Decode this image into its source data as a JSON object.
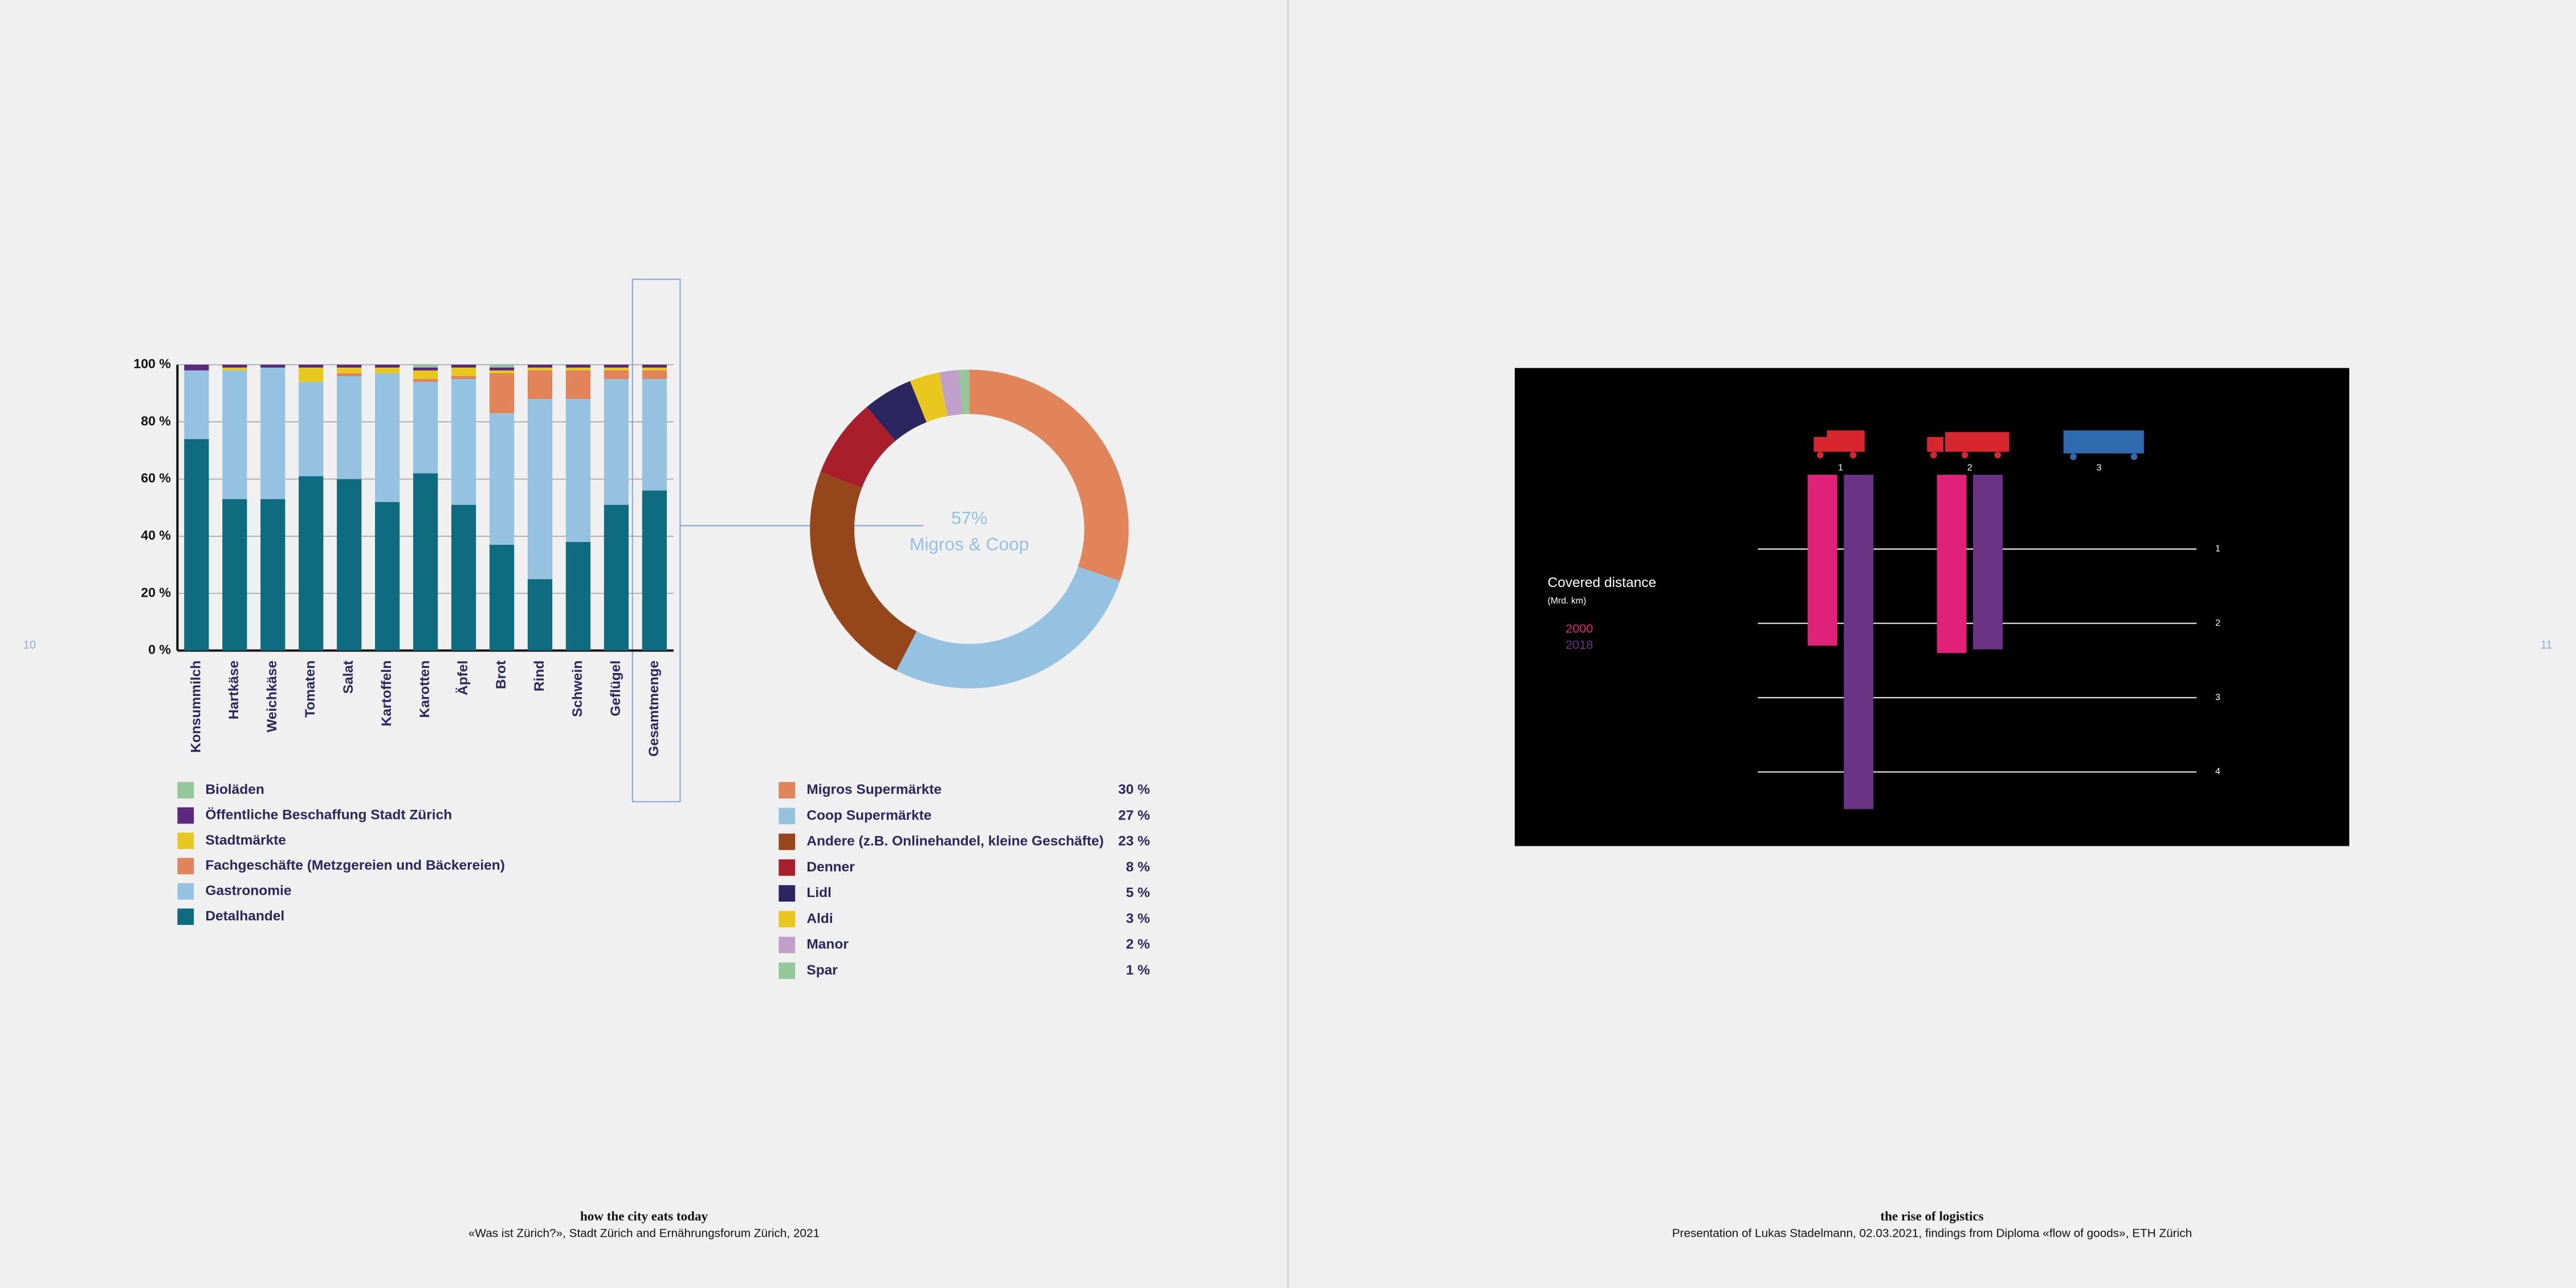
{
  "pages": [
    {
      "number": "10",
      "caption_title": "how the city eats today",
      "caption_source": "«Was ist Zürich?», Stadt Zürich and Ernährungsforum Zürich, 2021"
    },
    {
      "number": "11",
      "caption_title": "the rise of logistics",
      "caption_source": "Presentation of Lukas Stadelmann, 02.03.2021, findings from Diploma «flow of goods», ETH Zürich"
    }
  ],
  "chart_data": [
    {
      "type": "bar",
      "stacked": true,
      "categories": [
        "Konsummilch",
        "Hartkäse",
        "Weichkäse",
        "Tomaten",
        "Salat",
        "Kartoffeln",
        "Karotten",
        "Äpfel",
        "Brot",
        "Rind",
        "Schwein",
        "Geflügel",
        "Gesamtmenge"
      ],
      "series": [
        {
          "name": "Bioläden",
          "color": "#93c79a",
          "values": [
            0,
            0,
            0,
            0,
            0,
            0,
            1,
            0,
            1,
            0,
            0,
            0,
            0
          ]
        },
        {
          "name": "Öffentliche Beschaffung Stadt Zürich",
          "color": "#5b2a7e",
          "values": [
            2,
            1,
            1,
            1,
            1,
            1,
            1,
            1,
            1,
            1,
            1,
            1,
            1
          ]
        },
        {
          "name": "Stadtmärkte",
          "color": "#e8c81e",
          "values": [
            0,
            1,
            0,
            5,
            2,
            2,
            3,
            3,
            1,
            1,
            1,
            1,
            1
          ]
        },
        {
          "name": "Fachgeschäfte (Metzgereien und Bäckereien)",
          "color": "#e2845a",
          "values": [
            0,
            0,
            0,
            0,
            1,
            0,
            1,
            1,
            14,
            10,
            10,
            3,
            3
          ]
        },
        {
          "name": "Gastronomie",
          "color": "#94c2e0",
          "values": [
            24,
            45,
            46,
            33,
            36,
            45,
            32,
            44,
            46,
            63,
            50,
            44,
            39
          ]
        },
        {
          "name": "Detalhandel",
          "color": "#0e6b80",
          "values": [
            74,
            53,
            53,
            61,
            60,
            52,
            62,
            51,
            37,
            25,
            38,
            51,
            56
          ]
        }
      ],
      "ylim": [
        0,
        100
      ],
      "yticks": [
        {
          "value": 0,
          "label": "0 %"
        },
        {
          "value": 20,
          "label": "20 %"
        },
        {
          "value": 40,
          "label": "40 %"
        },
        {
          "value": 60,
          "label": "60 %"
        },
        {
          "value": 80,
          "label": "80 %"
        },
        {
          "value": 100,
          "label": "100 %"
        }
      ],
      "grid": true
    },
    {
      "type": "pie",
      "donut": true,
      "categories": [
        "Migros Supermärkte",
        "Coop Supermärkte",
        "Andere (z.B. Onlinehandel, kleine Geschäfte)",
        "Denner",
        "Lidl",
        "Aldi",
        "Manor",
        "Spar"
      ],
      "values": [
        30,
        27,
        23,
        8,
        5,
        3,
        2,
        1
      ],
      "value_labels": [
        "30 %",
        "27 %",
        "23 %",
        "8 %",
        "5 %",
        "3 %",
        "2 %",
        "1 %"
      ],
      "colors": [
        "#e2845a",
        "#94c2e0",
        "#96461b",
        "#a81e2a",
        "#2b2560",
        "#e8c81e",
        "#c0a0c8",
        "#93c79a"
      ],
      "center_label": "57%",
      "center_sublabel": "Migros & Coop"
    },
    {
      "type": "bar",
      "stacked": false,
      "title": "Covered distance",
      "subtitle": "(Mrd. km)",
      "categories": [
        "1",
        "2",
        "3"
      ],
      "series": [
        {
          "name": "2000",
          "color": "#e0217a",
          "values": [
            2.3,
            2.4,
            null
          ]
        },
        {
          "name": "2018",
          "color": "#6b3384",
          "values": [
            4.5,
            2.35,
            null
          ]
        }
      ],
      "ylim": [
        0,
        4.6
      ],
      "yticks": [
        1,
        2,
        3,
        4
      ],
      "y_inverted": true,
      "grid": true
    }
  ]
}
